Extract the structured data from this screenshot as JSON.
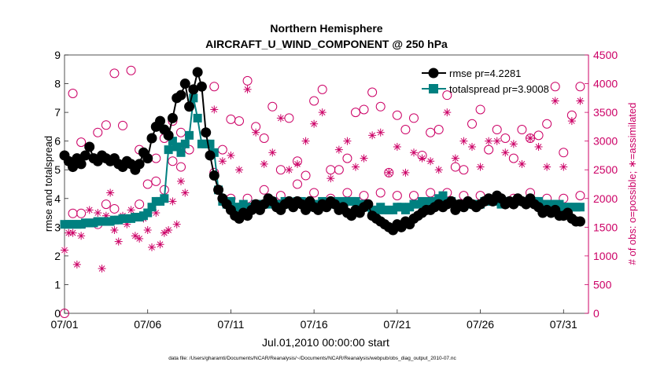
{
  "chart_data": {
    "type": "line",
    "title": "Northern Hemisphere",
    "subtitle": "AIRCRAFT_U_WIND_COMPONENT @ 250 hPa",
    "xlabel": "Jul.01,2010 00:00:00 start",
    "ylabel": "rmse and totalspread",
    "y2label": "# of obs: o=possible; ∗=assimilated",
    "footnote": "data file: /Users/gharamti/Documents/NCAR/Reanalysis/~/Documents/NCAR/Reanalysis/webpub/obs_diag_output_2010-07.nc",
    "x_range": [
      1,
      32.5
    ],
    "xticks": [
      1,
      6,
      11,
      16,
      21,
      26,
      31
    ],
    "xtick_labels": [
      "07/01",
      "07/06",
      "07/11",
      "07/16",
      "07/21",
      "07/26",
      "07/31"
    ],
    "ylim": [
      0,
      9
    ],
    "yticks": [
      0,
      1,
      2,
      3,
      4,
      5,
      6,
      7,
      8,
      9
    ],
    "y2lim": [
      0,
      4500
    ],
    "y2ticks": [
      0,
      500,
      1000,
      1500,
      2000,
      2500,
      3000,
      3500,
      4000,
      4500
    ],
    "colors": {
      "rmse": "#000000",
      "spread": "#008080",
      "counts": "#cc0066"
    },
    "legend": {
      "position": "top-right",
      "rmse_label": "rmse pr=4.2281",
      "spread_label": "totalspread pr=3.9008"
    },
    "series": [
      {
        "name": "rmse",
        "x": [
          1.0,
          1.25,
          1.5,
          1.75,
          2.0,
          2.25,
          2.5,
          2.75,
          3.0,
          3.25,
          3.5,
          3.75,
          4.0,
          4.25,
          4.5,
          4.75,
          5.0,
          5.25,
          5.5,
          5.75,
          6.0,
          6.25,
          6.5,
          6.75,
          7.0,
          7.25,
          7.5,
          7.75,
          8.0,
          8.25,
          8.5,
          8.75,
          9.0,
          9.25,
          9.5,
          9.75,
          10.0,
          10.25,
          10.5,
          10.75,
          11.0,
          11.25,
          11.5,
          11.75,
          12.0,
          12.25,
          12.5,
          12.75,
          13.0,
          13.25,
          13.5,
          13.75,
          14.0,
          14.25,
          14.5,
          14.75,
          15.0,
          15.25,
          15.5,
          15.75,
          16.0,
          16.25,
          16.5,
          16.75,
          17.0,
          17.25,
          17.5,
          17.75,
          18.0,
          18.25,
          18.5,
          18.75,
          19.0,
          19.25,
          19.5,
          19.75,
          20.0,
          20.25,
          20.5,
          20.75,
          21.0,
          21.25,
          21.5,
          21.75,
          22.0,
          22.25,
          22.5,
          22.75,
          23.0,
          23.25,
          23.5,
          23.75,
          24.0,
          24.25,
          24.5,
          24.75,
          25.0,
          25.25,
          25.5,
          25.75,
          26.0,
          26.25,
          26.5,
          26.75,
          27.0,
          27.25,
          27.5,
          27.75,
          28.0,
          28.25,
          28.5,
          28.75,
          29.0,
          29.25,
          29.5,
          29.75,
          30.0,
          30.25,
          30.5,
          30.75,
          31.0,
          31.25,
          31.5,
          31.75,
          32.0
        ],
        "values": [
          5.5,
          5.3,
          5.1,
          5.4,
          5.2,
          5.5,
          5.8,
          5.4,
          5.3,
          5.5,
          5.4,
          5.3,
          5.4,
          5.2,
          5.1,
          5.3,
          5.2,
          5.0,
          5.2,
          5.6,
          5.4,
          6.1,
          6.5,
          6.7,
          6.4,
          6.2,
          6.8,
          7.5,
          7.6,
          8.0,
          7.2,
          7.8,
          8.4,
          7.9,
          6.3,
          5.5,
          4.8,
          4.3,
          4.0,
          3.8,
          3.6,
          3.4,
          3.3,
          3.5,
          3.4,
          3.6,
          3.8,
          3.6,
          3.8,
          4.0,
          3.9,
          3.7,
          3.6,
          3.8,
          3.9,
          3.7,
          3.9,
          3.8,
          3.6,
          3.9,
          3.7,
          3.6,
          3.8,
          3.7,
          3.9,
          3.8,
          3.6,
          3.7,
          3.5,
          3.4,
          3.6,
          3.5,
          3.7,
          3.8,
          3.4,
          3.3,
          3.2,
          3.1,
          3.0,
          2.9,
          3.1,
          3.0,
          3.2,
          3.1,
          3.3,
          3.4,
          3.5,
          3.6,
          3.6,
          3.7,
          3.8,
          3.7,
          3.8,
          3.9,
          3.6,
          3.8,
          3.7,
          3.9,
          3.8,
          3.7,
          3.8,
          3.9,
          4.0,
          3.9,
          4.1,
          4.0,
          3.8,
          3.9,
          3.8,
          4.0,
          3.9,
          3.8,
          4.0,
          3.8,
          3.7,
          3.5,
          3.6,
          3.5,
          3.6,
          3.4,
          3.4,
          3.5,
          3.3,
          3.2,
          3.2
        ]
      },
      {
        "name": "totalspread",
        "x": [
          1.0,
          1.25,
          1.5,
          1.75,
          2.0,
          2.25,
          2.5,
          2.75,
          3.0,
          3.25,
          3.5,
          3.75,
          4.0,
          4.25,
          4.5,
          4.75,
          5.0,
          5.25,
          5.5,
          5.75,
          6.0,
          6.25,
          6.5,
          6.75,
          7.0,
          7.25,
          7.5,
          7.75,
          8.0,
          8.25,
          8.5,
          8.75,
          9.0,
          9.25,
          9.5,
          9.75,
          10.0,
          10.25,
          10.5,
          10.75,
          11.0,
          11.25,
          11.5,
          11.75,
          12.0,
          12.25,
          12.5,
          12.75,
          13.0,
          13.25,
          13.5,
          13.75,
          14.0,
          14.25,
          14.5,
          14.75,
          15.0,
          15.25,
          15.5,
          15.75,
          16.0,
          16.25,
          16.5,
          16.75,
          17.0,
          17.25,
          17.5,
          17.75,
          18.0,
          18.25,
          18.5,
          18.75,
          19.0,
          19.25,
          19.5,
          19.75,
          20.0,
          20.25,
          20.5,
          20.75,
          21.0,
          21.25,
          21.5,
          21.75,
          22.0,
          22.25,
          22.5,
          22.75,
          23.0,
          23.25,
          23.5,
          23.75,
          24.0,
          24.25,
          24.5,
          24.75,
          25.0,
          25.25,
          25.5,
          25.75,
          26.0,
          26.25,
          26.5,
          26.75,
          27.0,
          27.25,
          27.5,
          27.75,
          28.0,
          28.25,
          28.5,
          28.75,
          29.0,
          29.25,
          29.5,
          29.75,
          30.0,
          30.25,
          30.5,
          30.75,
          31.0,
          31.25,
          31.5,
          31.75,
          32.0
        ],
        "values": [
          3.1,
          3.1,
          3.1,
          3.1,
          3.1,
          3.15,
          3.15,
          3.15,
          3.2,
          3.2,
          3.2,
          3.2,
          3.25,
          3.25,
          3.3,
          3.3,
          3.3,
          3.35,
          3.35,
          3.4,
          3.5,
          3.7,
          3.9,
          3.9,
          4.0,
          5.7,
          6.0,
          5.8,
          5.6,
          5.9,
          6.2,
          7.5,
          6.8,
          5.9,
          5.9,
          5.9,
          5.6,
          4.3,
          3.9,
          3.8,
          3.9,
          3.7,
          3.7,
          3.8,
          3.7,
          3.7,
          3.8,
          3.8,
          3.8,
          3.8,
          3.9,
          3.8,
          3.8,
          3.9,
          3.8,
          3.8,
          3.9,
          3.9,
          3.7,
          3.7,
          3.8,
          3.8,
          3.9,
          3.8,
          3.8,
          3.9,
          3.8,
          3.9,
          3.9,
          3.9,
          3.9,
          3.8,
          3.8,
          3.7,
          3.6,
          3.6,
          3.7,
          3.6,
          3.6,
          3.6,
          3.7,
          3.7,
          3.6,
          3.7,
          3.8,
          3.8,
          3.9,
          3.8,
          3.9,
          3.9,
          4.0,
          4.1,
          3.9,
          3.9,
          3.8,
          3.8,
          3.8,
          3.8,
          3.8,
          3.8,
          3.8,
          3.9,
          3.9,
          3.9,
          3.9,
          3.8,
          3.9,
          3.9,
          3.9,
          3.9,
          3.9,
          3.9,
          3.9,
          3.9,
          3.9,
          3.8,
          3.8,
          3.8,
          3.8,
          3.8,
          3.7,
          3.7,
          3.7,
          3.7,
          3.7
        ]
      },
      {
        "name": "possible_obs",
        "axis": "right",
        "x": [
          1.0,
          1.5,
          2.0,
          3.0,
          3.5,
          4.0,
          4.5,
          5.0,
          5.5,
          6.0,
          6.5,
          7.0,
          7.5,
          8.0,
          8.5,
          1.5,
          2.0,
          3.0,
          3.5,
          4.0,
          5.5,
          6.0,
          6.5,
          7.0,
          7.5,
          8.0,
          10.0,
          10.5,
          11.0,
          11.5,
          12.0,
          12.5,
          13.0,
          13.5,
          14.0,
          14.5,
          15.0,
          15.5,
          16.0,
          16.5,
          17.0,
          17.5,
          18.0,
          18.5,
          19.0,
          19.5,
          20.0,
          20.5,
          21.0,
          21.5,
          22.0,
          22.5,
          23.0,
          23.5,
          24.0,
          24.5,
          25.0,
          25.5,
          26.0,
          26.5,
          27.0,
          27.5,
          28.0,
          28.5,
          29.0,
          29.5,
          30.0,
          30.5,
          31.0,
          31.5,
          32.0,
          10.0,
          11.0,
          12.0,
          13.0,
          14.0,
          15.0,
          16.0,
          17.0,
          18.0,
          19.0,
          20.0,
          21.0,
          22.0,
          23.0,
          24.0,
          25.0,
          26.0,
          27.0,
          28.0,
          29.0,
          30.0,
          31.0,
          32.0
        ],
        "values": [
          0,
          3830,
          2980,
          3150,
          3280,
          4180,
          3270,
          4230,
          2850,
          2700,
          2300,
          3050,
          3350,
          3150,
          2850,
          1740,
          1740,
          1550,
          1900,
          1820,
          1900,
          2250,
          2700,
          2150,
          2650,
          2550,
          3950,
          2850,
          3380,
          3350,
          4050,
          3250,
          3050,
          3600,
          2500,
          3400,
          2650,
          2400,
          3700,
          3900,
          2500,
          2500,
          2700,
          3500,
          3550,
          3850,
          3600,
          2450,
          3450,
          3200,
          3400,
          2750,
          3150,
          3200,
          3800,
          2550,
          2500,
          3300,
          3550,
          2850,
          3200,
          3050,
          2700,
          3200,
          3050,
          3100,
          3300,
          3950,
          2800,
          3450,
          3950,
          2450,
          2000,
          2000,
          2150,
          2050,
          2250,
          2100,
          2000,
          2100,
          2050,
          2100,
          2050,
          2050,
          2100,
          2100,
          2050,
          2050,
          2050,
          2000,
          2100,
          2000,
          2000,
          2050
        ]
      },
      {
        "name": "assimilated_obs",
        "axis": "right",
        "x": [
          1.25,
          1.75,
          2.25,
          2.75,
          3.25,
          3.75,
          4.25,
          4.75,
          5.25,
          5.75,
          6.25,
          6.75,
          7.25,
          7.75,
          8.25,
          1.0,
          1.5,
          2.0,
          2.5,
          3.0,
          3.5,
          4.0,
          4.5,
          5.0,
          5.5,
          6.0,
          6.5,
          7.0,
          7.5,
          8.0,
          10.0,
          10.5,
          11.0,
          11.5,
          12.0,
          12.5,
          13.0,
          13.5,
          14.0,
          14.5,
          15.0,
          15.5,
          16.0,
          16.5,
          17.0,
          17.5,
          18.0,
          18.5,
          19.0,
          19.5,
          20.0,
          20.5,
          21.0,
          21.5,
          22.0,
          22.5,
          23.0,
          23.5,
          24.0,
          24.5,
          25.0,
          25.5,
          26.0,
          26.5,
          27.0,
          27.5,
          28.0,
          28.5,
          29.0,
          29.5,
          30.0,
          30.5,
          31.0,
          31.5,
          32.0
        ],
        "values": [
          1400,
          850,
          1550,
          1600,
          780,
          2100,
          1250,
          1550,
          1350,
          1650,
          1150,
          1200,
          1450,
          1550,
          2100,
          1100,
          1400,
          1350,
          1800,
          1750,
          1700,
          1450,
          1700,
          1800,
          1300,
          1450,
          1750,
          1400,
          1950,
          2300,
          3550,
          2650,
          2750,
          2500,
          3900,
          3150,
          2600,
          2800,
          3400,
          2500,
          2600,
          3000,
          3300,
          3500,
          2350,
          2850,
          3000,
          2550,
          2700,
          3100,
          3150,
          2450,
          2900,
          2450,
          2800,
          2700,
          2650,
          2500,
          3500,
          2700,
          3000,
          2900,
          2550,
          3000,
          3000,
          2800,
          2950,
          2600,
          3050,
          2900,
          2550,
          3700,
          2550,
          3350,
          3700
        ]
      }
    ]
  }
}
